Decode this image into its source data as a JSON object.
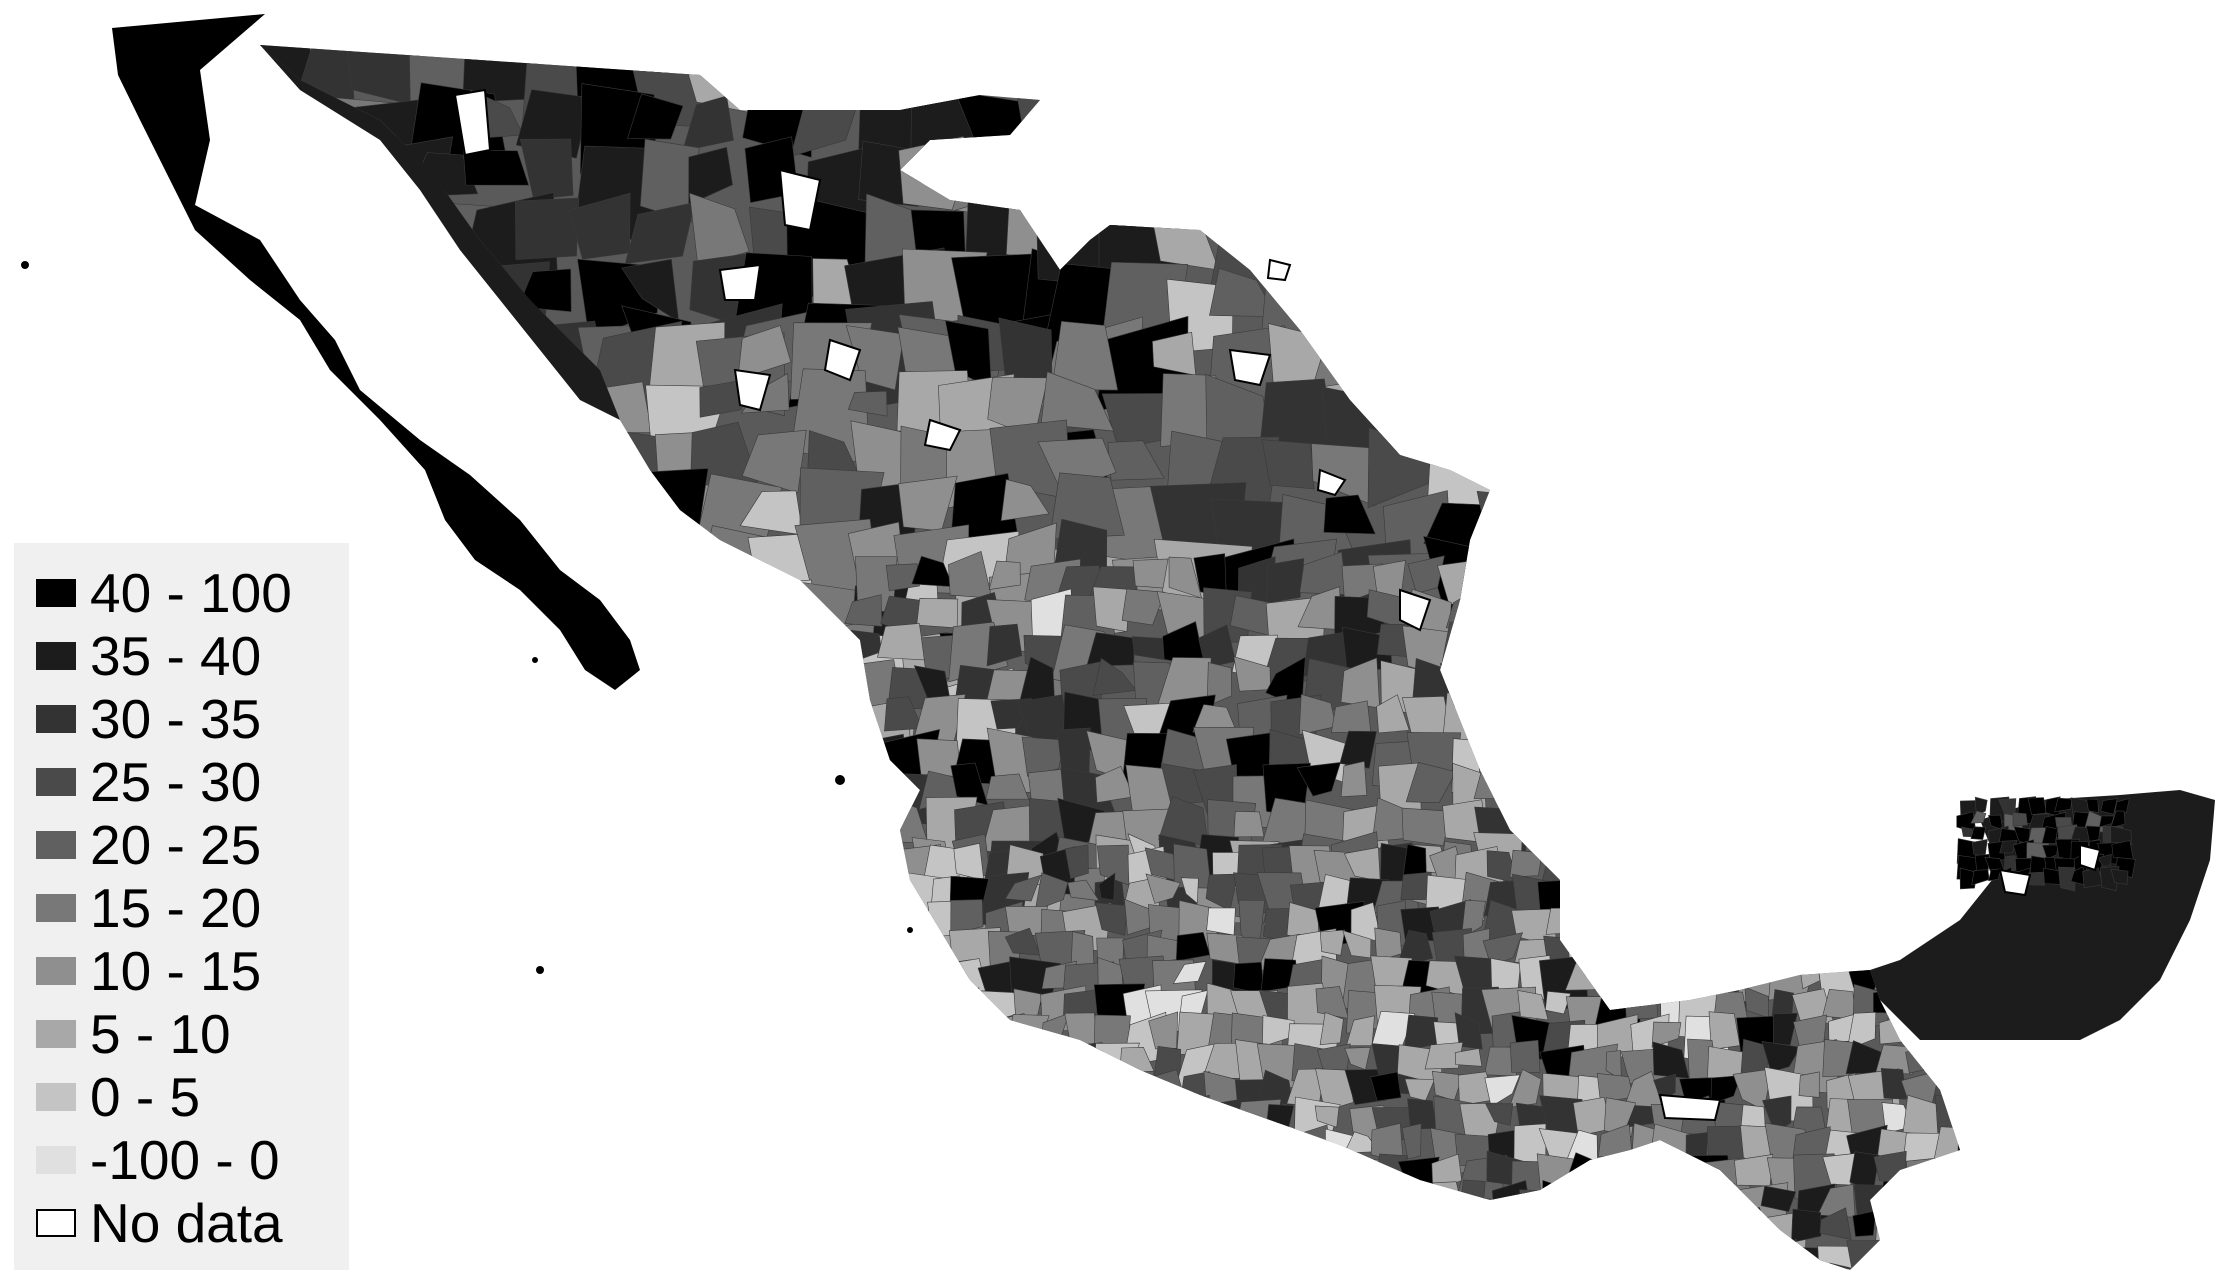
{
  "legend": {
    "items": [
      {
        "label": "40 - 100",
        "color": "#000000"
      },
      {
        "label": "35 - 40",
        "color": "#1c1c1c"
      },
      {
        "label": "30 - 35",
        "color": "#333333"
      },
      {
        "label": "25 - 30",
        "color": "#4a4a4a"
      },
      {
        "label": "20 - 25",
        "color": "#606060"
      },
      {
        "label": "15 - 20",
        "color": "#787878"
      },
      {
        "label": "10 - 15",
        "color": "#8f8f8f"
      },
      {
        "label": "5 - 10",
        "color": "#a8a8a8"
      },
      {
        "label": "0 - 5",
        "color": "#c4c4c4"
      },
      {
        "label": "-100 - 0",
        "color": "#e0e0e0"
      },
      {
        "label": "No data",
        "color": "#ffffff"
      }
    ]
  },
  "map": {
    "land_color": "#5a5a5a",
    "region_colors": [
      "#000000",
      "#1c1c1c",
      "#333333",
      "#4a4a4a",
      "#606060",
      "#787878",
      "#8f8f8f",
      "#a8a8a8",
      "#c4c4c4",
      "#e0e0e0",
      "#ffffff"
    ]
  }
}
